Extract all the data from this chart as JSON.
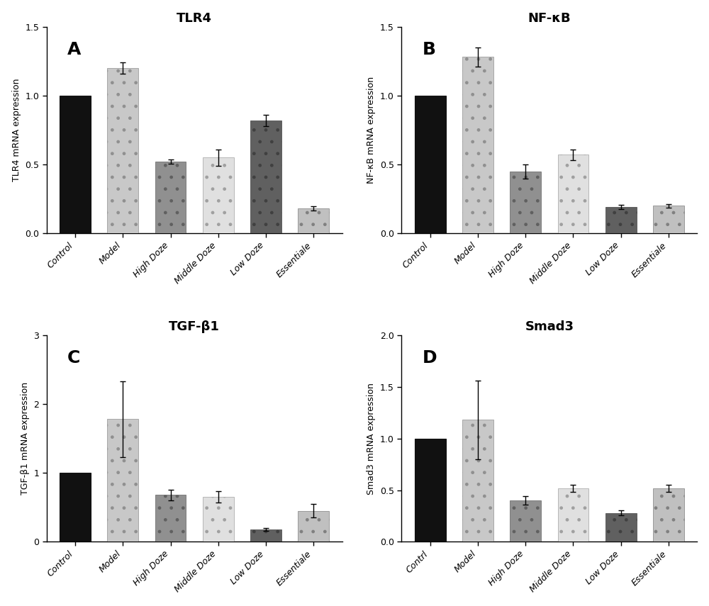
{
  "panels": [
    {
      "label": "A",
      "title": "TLR4",
      "ylabel": "TLR4 mRNA expression",
      "ylim": [
        0,
        1.5
      ],
      "yticks": [
        0.0,
        0.5,
        1.0,
        1.5
      ],
      "ytick_labels": [
        "0.0",
        "0.5",
        "1.0",
        "1.5"
      ],
      "categories": [
        "Control",
        "Model",
        "High Doze",
        "Middle Doze",
        "Low Doze",
        "Essentiale"
      ],
      "values": [
        1.0,
        1.2,
        0.52,
        0.55,
        0.82,
        0.18
      ],
      "errors": [
        0.0,
        0.04,
        0.015,
        0.06,
        0.04,
        0.015
      ]
    },
    {
      "label": "B",
      "title": "NF-κB",
      "ylabel": "NF-κB mRNA expression",
      "ylim": [
        0,
        1.5
      ],
      "yticks": [
        0.0,
        0.5,
        1.0,
        1.5
      ],
      "ytick_labels": [
        "0.0",
        "0.5",
        "1.0",
        "1.5"
      ],
      "categories": [
        "Control",
        "Model",
        "High Doze",
        "Middle Doze",
        "Low Doze",
        "Essentiale"
      ],
      "values": [
        1.0,
        1.28,
        0.45,
        0.57,
        0.19,
        0.2
      ],
      "errors": [
        0.0,
        0.07,
        0.05,
        0.04,
        0.015,
        0.015
      ]
    },
    {
      "label": "C",
      "title": "TGF-β1",
      "ylabel": "TGF-β1 mRNA expression",
      "ylim": [
        0,
        3.0
      ],
      "yticks": [
        0,
        1,
        2,
        3
      ],
      "ytick_labels": [
        "0",
        "1",
        "2",
        "3"
      ],
      "categories": [
        "Control",
        "Model",
        "High Doze",
        "Middle Doze",
        "Low Doze",
        "Essentiale"
      ],
      "values": [
        1.0,
        1.78,
        0.68,
        0.65,
        0.18,
        0.45
      ],
      "errors": [
        0.0,
        0.55,
        0.08,
        0.08,
        0.025,
        0.1
      ]
    },
    {
      "label": "D",
      "title": "Smad3",
      "ylabel": "Smad3 mRNA expression",
      "ylim": [
        0,
        2.0
      ],
      "yticks": [
        0.0,
        0.5,
        1.0,
        1.5,
        2.0
      ],
      "ytick_labels": [
        "0.0",
        "0.5",
        "1.0",
        "1.5",
        "2.0"
      ],
      "categories": [
        "Contrl",
        "Model",
        "High Doze",
        "Middle Doze",
        "Low Doze",
        "Essentiale"
      ],
      "values": [
        1.0,
        1.18,
        0.4,
        0.52,
        0.28,
        0.52
      ],
      "errors": [
        0.0,
        0.38,
        0.04,
        0.035,
        0.025,
        0.035
      ]
    }
  ],
  "bar_colors": [
    "#111111",
    "#c8c8c8",
    "#909090",
    "#e0e0e0",
    "#606060",
    "#c0c0c0"
  ],
  "bar_edgecolors": [
    "#111111",
    "#909090",
    "#606060",
    "#a0a0a0",
    "#404040",
    "#808080"
  ],
  "bar_hatches": [
    "",
    ".",
    ".",
    ".",
    ".",
    "."
  ],
  "background_color": "#ffffff",
  "bar_width": 0.65,
  "fontsize_title": 13,
  "fontsize_label": 9,
  "fontsize_tick": 9,
  "fontsize_panel_label": 18
}
